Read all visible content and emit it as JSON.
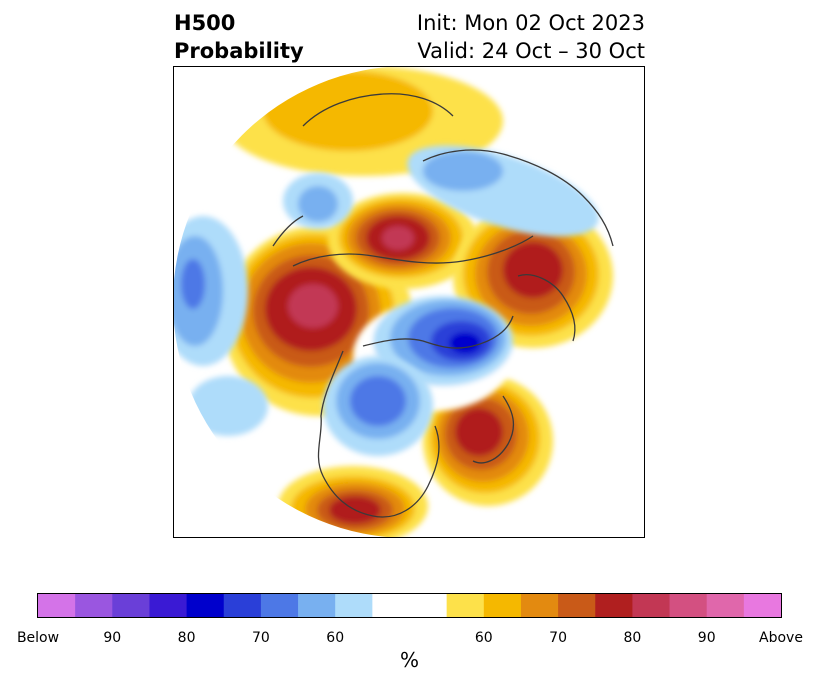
{
  "header": {
    "title_line1": "H500",
    "title_line2": "Probability",
    "init": "Init: Mon 02 Oct 2023",
    "valid": "Valid: 24 Oct – 30 Oct"
  },
  "colorbar": {
    "colors": [
      "#d473e8",
      "#9a56e0",
      "#6a3fd8",
      "#3a1ad4",
      "#0000cc",
      "#2a3fd8",
      "#4d78e6",
      "#78b0f0",
      "#aedcfa",
      "#ffffff",
      "#ffffff",
      "#fde14a",
      "#f5b800",
      "#e38a10",
      "#c95a18",
      "#b01f1f",
      "#c23754",
      "#d35081",
      "#e067ab",
      "#e878e0"
    ],
    "tick_labels": [
      "Below",
      "90",
      "80",
      "70",
      "60",
      "60",
      "70",
      "80",
      "90",
      "Above"
    ],
    "unit_label": "%"
  },
  "map": {
    "projection": "north-polar-stereographic",
    "variable": "500 hPa height anomaly probability",
    "colors": {
      "above_50": "#fde14a",
      "above_60": "#f5b800",
      "above_70": "#e38a10",
      "above_80": "#c95a18",
      "above_90": "#b01f1f",
      "above_max": "#c23754",
      "below_50": "#aedcfa",
      "below_60": "#78b0f0",
      "below_70": "#4d78e6",
      "below_80": "#2a3fd8",
      "below_90": "#0000cc"
    }
  }
}
